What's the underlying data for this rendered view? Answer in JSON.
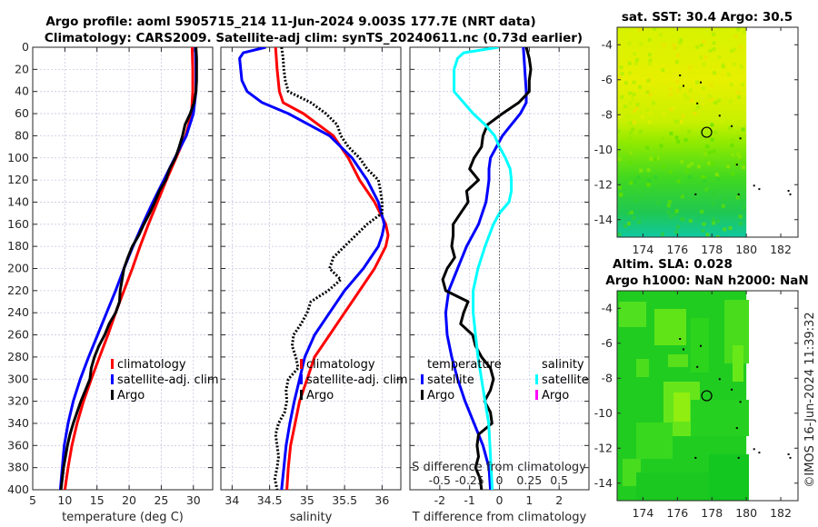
{
  "header": {
    "title_line1": "Argo profile: aoml 5905715_214 11-Jun-2024 9.003S 177.7E (NRT data)",
    "title_line2": "Climatology: CARS2009. Satellite-adj clim: synTS_20240611.nc (0.73d earlier)"
  },
  "footer": {
    "credit": "©IMOS 16-Jun-2024 11:39:32"
  },
  "colors": {
    "climatology": "#ff0000",
    "satellite": "#0000ff",
    "argo": "#000000",
    "sal_satellite": "#00ffff",
    "sal_argo": "#ff00ff"
  },
  "chart_data": [
    {
      "id": "temperature",
      "type": "line",
      "xlabel": "temperature (deg C)",
      "ylabel": "",
      "xlim": [
        5,
        33
      ],
      "ylim": [
        400,
        0
      ],
      "xticks": [
        5,
        10,
        15,
        20,
        25,
        30
      ],
      "yticks": [
        0,
        20,
        40,
        60,
        80,
        100,
        120,
        140,
        160,
        180,
        200,
        220,
        240,
        260,
        280,
        300,
        320,
        340,
        360,
        380,
        400
      ],
      "grid": true,
      "legend": {
        "placement": "middle-right",
        "entries": [
          "climatology",
          "satellite-adj. clim",
          "Argo"
        ]
      },
      "series": [
        {
          "name": "climatology",
          "color": "#ff0000",
          "depth": [
            0,
            20,
            40,
            60,
            80,
            100,
            120,
            140,
            160,
            180,
            200,
            220,
            240,
            260,
            280,
            300,
            320,
            340,
            360,
            380,
            400
          ],
          "values": [
            29.8,
            29.9,
            29.9,
            29.7,
            28.8,
            27.3,
            25.8,
            24.4,
            23.0,
            21.7,
            20.5,
            19.2,
            17.9,
            16.7,
            15.4,
            14.1,
            12.9,
            11.9,
            11.1,
            10.5,
            10.0
          ]
        },
        {
          "name": "satellite-adj. clim",
          "color": "#0000ff",
          "depth": [
            0,
            20,
            40,
            60,
            80,
            100,
            120,
            140,
            160,
            180,
            200,
            220,
            240,
            260,
            280,
            300,
            320,
            340,
            360,
            380,
            400
          ],
          "values": [
            30.3,
            30.4,
            30.4,
            30.0,
            28.9,
            27.1,
            25.4,
            23.7,
            22.1,
            20.6,
            19.2,
            17.9,
            16.5,
            15.1,
            13.7,
            12.4,
            11.3,
            10.5,
            9.9,
            9.6,
            9.3
          ]
        },
        {
          "name": "Argo",
          "color": "#000000",
          "depth": [
            0,
            10,
            20,
            30,
            40,
            50,
            60,
            70,
            80,
            90,
            100,
            110,
            120,
            130,
            140,
            150,
            160,
            170,
            180,
            190,
            200,
            210,
            220,
            230,
            240,
            250,
            260,
            270,
            280,
            290,
            300,
            310,
            320,
            330,
            340,
            350,
            360,
            370,
            380,
            390,
            400
          ],
          "values": [
            30.4,
            30.5,
            30.5,
            30.5,
            30.4,
            30.1,
            29.5,
            28.7,
            28.3,
            27.8,
            27.2,
            26.3,
            25.7,
            24.7,
            24.0,
            23.2,
            22.3,
            21.5,
            20.5,
            19.8,
            19.2,
            18.9,
            18.6,
            18.5,
            17.9,
            16.9,
            16.2,
            15.3,
            14.6,
            14.1,
            13.9,
            13.2,
            12.5,
            11.9,
            11.3,
            10.8,
            10.4,
            10.1,
            9.8,
            9.6,
            9.4
          ]
        }
      ]
    },
    {
      "id": "salinity",
      "type": "line",
      "xlabel": "salinity",
      "xlim": [
        33.85,
        36.25
      ],
      "ylim": [
        400,
        0
      ],
      "xticks": [
        34,
        34.5,
        35,
        35.5,
        36
      ],
      "grid": true,
      "legend": {
        "placement": "middle-right",
        "entries": [
          "climatology",
          "satellite-adj. clim",
          "Argo"
        ]
      },
      "series": [
        {
          "name": "climatology",
          "color": "#ff0000",
          "depth": [
            0,
            20,
            40,
            50,
            60,
            80,
            100,
            120,
            140,
            160,
            170,
            180,
            200,
            220,
            240,
            260,
            280,
            300,
            320,
            340,
            360,
            380,
            400
          ],
          "values": [
            34.58,
            34.6,
            34.63,
            34.68,
            34.95,
            35.35,
            35.55,
            35.7,
            35.9,
            36.05,
            36.08,
            36.05,
            35.9,
            35.7,
            35.5,
            35.3,
            35.1,
            35.0,
            34.9,
            34.84,
            34.78,
            34.75,
            34.73
          ]
        },
        {
          "name": "satellite-adj. clim",
          "color": "#0000ff",
          "depth": [
            0,
            5,
            10,
            30,
            40,
            50,
            60,
            80,
            90,
            100,
            120,
            140,
            160,
            170,
            180,
            200,
            220,
            240,
            260,
            280,
            300,
            320,
            340,
            360,
            380,
            400
          ],
          "values": [
            34.45,
            34.15,
            34.1,
            34.13,
            34.2,
            34.4,
            34.75,
            35.3,
            35.45,
            35.6,
            35.8,
            35.95,
            36.03,
            36.0,
            35.95,
            35.75,
            35.5,
            35.3,
            35.1,
            34.97,
            34.9,
            34.83,
            34.77,
            34.72,
            34.69,
            34.66
          ]
        },
        {
          "name": "Argo",
          "color": "#000000",
          "dotted": true,
          "depth": [
            0,
            10,
            20,
            30,
            40,
            50,
            60,
            70,
            80,
            90,
            100,
            110,
            120,
            130,
            140,
            150,
            160,
            170,
            180,
            190,
            200,
            210,
            220,
            230,
            240,
            250,
            260,
            270,
            280,
            290,
            300,
            310,
            320,
            330,
            340,
            350,
            360,
            370,
            380,
            390,
            400
          ],
          "values": [
            34.66,
            34.68,
            34.69,
            34.71,
            34.75,
            35.05,
            35.25,
            35.4,
            35.45,
            35.55,
            35.7,
            35.8,
            35.95,
            35.98,
            36.0,
            36.0,
            35.8,
            35.65,
            35.5,
            35.35,
            35.3,
            35.45,
            35.28,
            35.05,
            35.0,
            34.92,
            34.82,
            34.8,
            34.85,
            34.88,
            34.75,
            34.72,
            34.73,
            34.7,
            34.62,
            34.58,
            34.6,
            34.62,
            34.6,
            34.57,
            34.6
          ]
        }
      ]
    },
    {
      "id": "difference",
      "type": "line",
      "xlabel": "T difference from climatology",
      "x2label": "S difference from climatology",
      "xlim": [
        -3,
        3
      ],
      "ylim": [
        400,
        0
      ],
      "xticks": [
        -2,
        -1,
        0,
        1,
        2
      ],
      "x2ticks": [
        -0.5,
        -0.25,
        0,
        0.25,
        0.5
      ],
      "x2tick_labels": [
        "-0.5",
        "-0.25",
        "0",
        "0.25",
        "0.5"
      ],
      "grid": true,
      "zero_line": "dotted",
      "legend": {
        "placement": "lower-middle",
        "temperature_title": "temperature",
        "salinity_title": "salinity",
        "temperature_entries": [
          "satellite",
          "Argo"
        ],
        "salinity_entries": [
          "satellite",
          "Argo"
        ]
      },
      "series": [
        {
          "name": "temperature satellite",
          "color": "#0000ff",
          "depth": [
            0,
            20,
            40,
            50,
            60,
            70,
            80,
            90,
            100,
            110,
            120,
            130,
            140,
            160,
            180,
            200,
            220,
            240,
            260,
            280,
            300,
            320,
            340,
            360,
            380,
            400
          ],
          "values": [
            0.8,
            0.85,
            0.9,
            0.9,
            0.7,
            0.4,
            0.1,
            -0.1,
            -0.3,
            -0.35,
            -0.35,
            -0.4,
            -0.45,
            -0.7,
            -1.1,
            -1.4,
            -1.7,
            -1.8,
            -1.75,
            -1.6,
            -1.4,
            -1.15,
            -0.85,
            -0.55,
            -0.35,
            -0.3
          ]
        },
        {
          "name": "temperature Argo",
          "color": "#000000",
          "depth": [
            0,
            10,
            20,
            30,
            40,
            50,
            60,
            70,
            80,
            90,
            100,
            110,
            120,
            130,
            140,
            150,
            160,
            170,
            180,
            190,
            200,
            210,
            220,
            230,
            240,
            250,
            260,
            270,
            280,
            290,
            300,
            310,
            320,
            330,
            340,
            350,
            360,
            370,
            380,
            390,
            400
          ],
          "values": [
            0.9,
            1.0,
            1.05,
            1.0,
            1.0,
            0.65,
            0.1,
            -0.4,
            -0.55,
            -0.6,
            -0.85,
            -1.0,
            -0.7,
            -1.1,
            -1.05,
            -1.3,
            -1.55,
            -1.55,
            -1.6,
            -1.5,
            -1.75,
            -1.9,
            -1.8,
            -1.05,
            -1.2,
            -1.3,
            -0.9,
            -0.8,
            -0.6,
            -0.3,
            -0.2,
            -0.3,
            -0.5,
            -0.3,
            -0.25,
            -0.7,
            -0.75,
            -0.7,
            -0.8,
            -0.65,
            -0.6
          ]
        },
        {
          "name": "salinity satellite",
          "color": "#00ffff",
          "depth": [
            0,
            5,
            10,
            20,
            40,
            50,
            60,
            70,
            80,
            90,
            100,
            110,
            120,
            130,
            140,
            150,
            160,
            180,
            200,
            220,
            240,
            260,
            280,
            300,
            320,
            340,
            360,
            380,
            400
          ],
          "values": [
            -0.01,
            -0.3,
            -0.35,
            -0.38,
            -0.38,
            -0.3,
            -0.22,
            -0.12,
            -0.04,
            0.0,
            0.05,
            0.09,
            0.1,
            0.1,
            0.08,
            0.0,
            -0.05,
            -0.12,
            -0.18,
            -0.22,
            -0.22,
            -0.2,
            -0.18,
            -0.15,
            -0.12,
            -0.09,
            -0.08,
            -0.07,
            -0.06
          ]
        }
      ]
    },
    {
      "id": "sst-map",
      "type": "heatmap",
      "title": "sat. SST: 30.4 Argo: 30.5",
      "xlim": [
        172.5,
        183
      ],
      "ylim": [
        -15,
        -3
      ],
      "xticks": [
        174,
        176,
        178,
        180,
        182
      ],
      "yticks": [
        -4,
        -6,
        -8,
        -10,
        -12,
        -14
      ],
      "profile_location": [
        177.7,
        -9.003
      ],
      "colormap_note": "yellow (warm, north) to teal-green (cooler, south)",
      "data_extent_lon_max": 180
    },
    {
      "id": "sla-map",
      "type": "heatmap",
      "title_line1": "Altim. SLA: 0.028",
      "title_line2": "Argo h1000: NaN h2000: NaN",
      "xlim": [
        172.5,
        183
      ],
      "ylim": [
        -15,
        -3
      ],
      "xticks": [
        174,
        176,
        178,
        180,
        182
      ],
      "yticks": [
        -4,
        -6,
        -8,
        -10,
        -12,
        -14
      ],
      "profile_location": [
        177.7,
        -9.003
      ],
      "colormap_note": "mostly uniform green with lighter patches",
      "data_extent_lon_max": 180
    }
  ]
}
